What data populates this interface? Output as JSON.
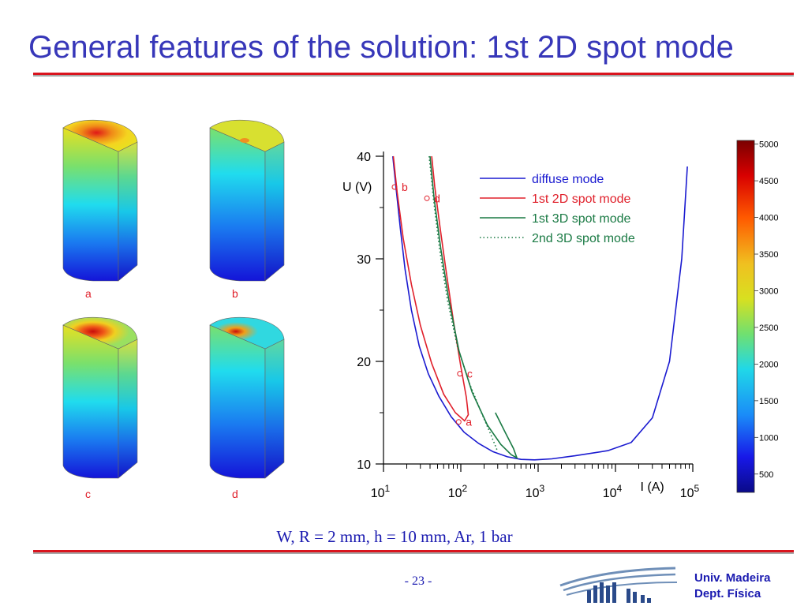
{
  "slide": {
    "title": "General features of the solution: 1st 2D spot mode",
    "caption": "W, R = 2 mm, h = 10 mm, Ar, 1 bar",
    "page_number": "- 23 -",
    "institution_line1": "Univ. Madeira",
    "institution_line2": "Dept. Física"
  },
  "panels": [
    {
      "label": "a"
    },
    {
      "label": "b"
    },
    {
      "label": "c"
    },
    {
      "label": "d"
    }
  ],
  "colorbar": {
    "ticks": [
      "5000",
      "4500",
      "4000",
      "3500",
      "3000",
      "2500",
      "2000",
      "1500",
      "1000",
      "500"
    ]
  },
  "chart_data": {
    "type": "line",
    "xlabel": "I (A)",
    "ylabel": "U (V)",
    "xscale": "log",
    "xlim": [
      10,
      100000
    ],
    "ylim": [
      10,
      40
    ],
    "x_tick_labels": [
      {
        "base": "10",
        "exp": "1"
      },
      {
        "base": "10",
        "exp": "2"
      },
      {
        "base": "10",
        "exp": "3"
      },
      {
        "base": "10",
        "exp": "4"
      },
      {
        "base": "10",
        "exp": "5"
      }
    ],
    "y_ticks": [
      "10",
      "20",
      "30",
      "40"
    ],
    "legend_position": "top-right",
    "series": [
      {
        "name": "diffuse mode",
        "color": "#1a1ad0",
        "style": "solid",
        "points": [
          [
            13.2,
            40
          ],
          [
            14.5,
            37
          ],
          [
            16.5,
            33
          ],
          [
            19,
            29
          ],
          [
            23,
            25
          ],
          [
            29,
            21.5
          ],
          [
            38,
            18.8
          ],
          [
            52,
            16.6
          ],
          [
            75,
            14.6
          ],
          [
            110,
            13.1
          ],
          [
            170,
            12
          ],
          [
            260,
            11.2
          ],
          [
            400,
            10.7
          ],
          [
            600,
            10.45
          ],
          [
            900,
            10.4
          ],
          [
            1500,
            10.5
          ],
          [
            3000,
            10.8
          ],
          [
            8000,
            11.3
          ],
          [
            16000,
            12.1
          ],
          [
            30000,
            14.5
          ],
          [
            50000,
            20
          ],
          [
            72000,
            30
          ],
          [
            85000,
            39
          ]
        ]
      },
      {
        "name": "1st 2D spot mode",
        "color": "#e0202b",
        "style": "solid",
        "points": [
          [
            13.4,
            40
          ],
          [
            15,
            36.5
          ],
          [
            18,
            32
          ],
          [
            23,
            27.5
          ],
          [
            30,
            23.5
          ],
          [
            42,
            19.8
          ],
          [
            60,
            16.8
          ],
          [
            85,
            15
          ],
          [
            112,
            14.2
          ],
          [
            125,
            14.8
          ],
          [
            118,
            16.5
          ],
          [
            100,
            19.5
          ],
          [
            80,
            24
          ],
          [
            64,
            29
          ],
          [
            54,
            33
          ],
          [
            46,
            37
          ],
          [
            42,
            40
          ]
        ]
      },
      {
        "name": "1st 3D spot mode",
        "color": "#1a7a44",
        "style": "solid",
        "points": [
          [
            40,
            40
          ],
          [
            45,
            36
          ],
          [
            55,
            31
          ],
          [
            70,
            26
          ],
          [
            95,
            21
          ],
          [
            140,
            17
          ],
          [
            220,
            13.8
          ],
          [
            330,
            11.9
          ],
          [
            450,
            10.9
          ],
          [
            530,
            10.6
          ],
          [
            480,
            11.5
          ],
          [
            380,
            13
          ],
          [
            280,
            15
          ]
        ]
      },
      {
        "name": "2nd 3D spot mode",
        "color": "#1a7a44",
        "style": "dotted",
        "points": [
          [
            39,
            40
          ],
          [
            44,
            36
          ],
          [
            53,
            31
          ],
          [
            67,
            26
          ],
          [
            90,
            21.5
          ],
          [
            130,
            17.8
          ],
          [
            180,
            15.2
          ],
          [
            240,
            13
          ],
          [
            300,
            11.2
          ]
        ]
      }
    ],
    "annotations": [
      {
        "text": "b",
        "x": 16,
        "y": 37,
        "color": "#e0202b"
      },
      {
        "text": "d",
        "x": 42,
        "y": 35.9,
        "color": "#e0202b"
      },
      {
        "text": "c",
        "x": 112,
        "y": 18.8,
        "color": "#e0202b"
      },
      {
        "text": "a",
        "x": 108,
        "y": 14.1,
        "color": "#e0202b"
      }
    ]
  }
}
